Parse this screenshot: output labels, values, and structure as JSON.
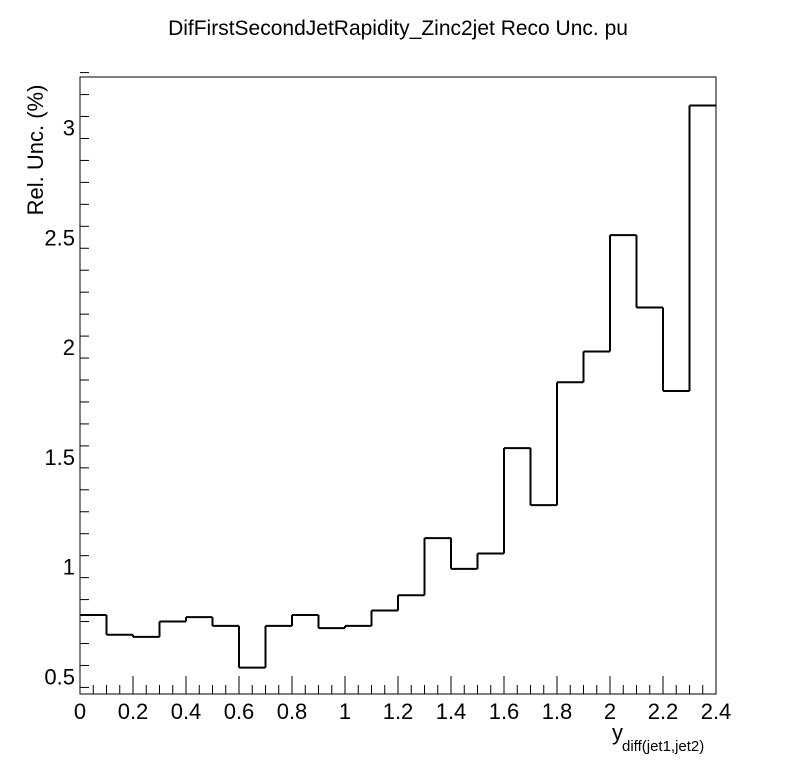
{
  "chart_data": {
    "type": "histogram",
    "title": "DifFirstSecondJetRapidity_Zinc2jet Reco Unc. pu",
    "xlabel": "y",
    "xlabel_subscript": "diff(jet1,jet2)",
    "ylabel": "Rel. Unc. (%)",
    "xlim": [
      0,
      2.4
    ],
    "ylim": [
      0.42,
      3.23
    ],
    "x_ticks": [
      "0",
      "0.2",
      "0.4",
      "0.6",
      "0.8",
      "1",
      "1.2",
      "1.4",
      "1.6",
      "1.8",
      "2",
      "2.2",
      "2.4"
    ],
    "y_ticks": [
      "0.5",
      "1",
      "1.5",
      "2",
      "2.5",
      "3"
    ],
    "bin_edges": [
      0,
      0.1,
      0.2,
      0.3,
      0.4,
      0.5,
      0.6,
      0.7,
      0.8,
      0.9,
      1.0,
      1.1,
      1.2,
      1.3,
      1.4,
      1.5,
      1.6,
      1.7,
      1.8,
      1.9,
      2.0,
      2.1,
      2.2,
      2.3,
      2.4
    ],
    "values": [
      0.78,
      0.69,
      0.68,
      0.75,
      0.77,
      0.73,
      0.54,
      0.73,
      0.78,
      0.72,
      0.73,
      0.8,
      0.87,
      1.13,
      0.99,
      1.06,
      1.54,
      1.28,
      1.84,
      1.98,
      2.51,
      2.18,
      1.8,
      3.1
    ],
    "grid": false,
    "colors": {
      "line": "#000000",
      "background": "#ffffff"
    }
  }
}
